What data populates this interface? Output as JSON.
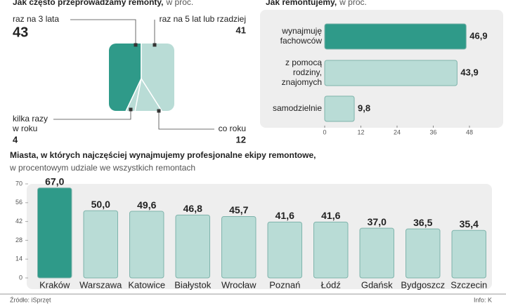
{
  "chart_data": [
    {
      "type": "pie",
      "title": "Jak często przeprowadzamy remonty,",
      "subtitle": "w proc.",
      "categories": [
        [
          "raz na 3 lata"
        ],
        [
          "kilka razy",
          "w roku"
        ],
        [
          "co roku"
        ],
        [
          "raz na 5 lat lub rzadziej"
        ]
      ],
      "values": [
        43,
        4,
        12,
        41
      ],
      "colors": [
        "#2f9a89",
        "#b9dcd6",
        "#b9dcd6",
        "#b9dcd6"
      ]
    },
    {
      "type": "hbar",
      "title": "Jak remontujemy,",
      "subtitle": "w proc.",
      "categories": [
        [
          "wynajmuję",
          "fachowców"
        ],
        [
          "z pomocą",
          "rodziny,",
          "znajomych"
        ],
        [
          "samodzielnie"
        ]
      ],
      "values": [
        46.9,
        43.9,
        9.8
      ],
      "value_labels": [
        "46,9",
        "43,9",
        "9,8"
      ],
      "colors": [
        "#2f9a89",
        "#b9dcd6",
        "#b9dcd6"
      ],
      "xlim": [
        0,
        48
      ],
      "xticks": [
        0,
        12,
        24,
        36,
        48
      ]
    },
    {
      "type": "bar",
      "title": "Miasta, w których najczęściej wynajmujemy profesjonalne ekipy remontowe,",
      "subtitle": "w procentowym udziale we wszystkich remontach",
      "categories": [
        "Kraków",
        "Warszawa",
        "Katowice",
        "Białystok",
        "Wrocław",
        "Poznań",
        "Łódź",
        "Gdańsk",
        "Bydgoszcz",
        "Szczecin"
      ],
      "values": [
        67.0,
        50.0,
        49.6,
        46.8,
        45.7,
        41.6,
        41.6,
        37.0,
        36.5,
        35.4
      ],
      "value_labels": [
        "67,0",
        "50,0",
        "49,6",
        "46,8",
        "45,7",
        "41,6",
        "41,6",
        "37,0",
        "36,5",
        "35,4"
      ],
      "colors": [
        "#2f9a89",
        "#b9dcd6",
        "#b9dcd6",
        "#b9dcd6",
        "#b9dcd6",
        "#b9dcd6",
        "#b9dcd6",
        "#b9dcd6",
        "#b9dcd6",
        "#b9dcd6"
      ],
      "ylim": [
        0,
        70
      ],
      "yticks": [
        0,
        14,
        28,
        42,
        56,
        70
      ]
    }
  ],
  "source": "Źródło: iSprzęt",
  "credit": "Info: K"
}
